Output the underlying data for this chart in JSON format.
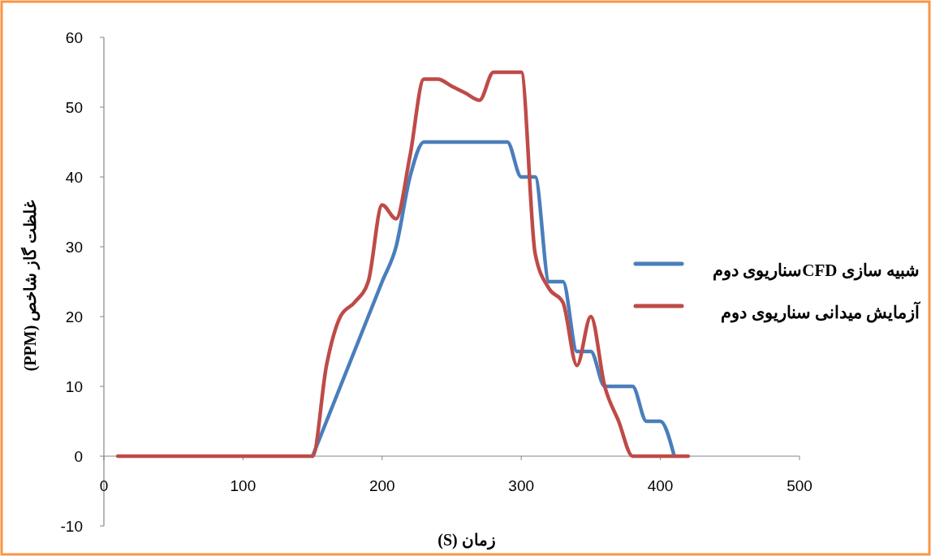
{
  "chart_data": {
    "type": "line",
    "xlabel": "زمان (S)",
    "ylabel": "غلظت گاز شاخص (PPM)",
    "xlim": [
      0,
      500
    ],
    "xticks": [
      0,
      100,
      200,
      300,
      400,
      500
    ],
    "ylim": [
      -10,
      60
    ],
    "yticks": [
      -10,
      0,
      10,
      20,
      30,
      40,
      50,
      60
    ],
    "grid": false,
    "legend": "right",
    "marker": "none",
    "line_style": "solid",
    "series": [
      {
        "name": "شبیه سازی  CFDسناریوی دوم",
        "color": "#4a7ebb",
        "x": [
          150,
          160,
          170,
          180,
          190,
          200,
          210,
          220,
          230,
          240,
          250,
          260,
          270,
          280,
          290,
          300,
          310,
          320,
          330,
          340,
          350,
          360,
          370,
          380,
          390,
          400,
          410
        ],
        "values": [
          0,
          5,
          10,
          15,
          20,
          25,
          30,
          40,
          45,
          45,
          45,
          45,
          45,
          45,
          45,
          40,
          40,
          25,
          25,
          15,
          15,
          10,
          10,
          10,
          5,
          5,
          0
        ]
      },
      {
        "name": "آزمایش میدانی سناریوی دوم",
        "color": "#be4b48",
        "x": [
          10,
          20,
          30,
          40,
          50,
          60,
          70,
          80,
          90,
          100,
          110,
          120,
          130,
          140,
          150,
          160,
          170,
          180,
          190,
          200,
          210,
          220,
          230,
          240,
          250,
          260,
          270,
          280,
          290,
          300,
          310,
          320,
          330,
          340,
          350,
          360,
          370,
          380,
          390,
          400,
          410,
          420
        ],
        "values": [
          0,
          0,
          0,
          0,
          0,
          0,
          0,
          0,
          0,
          0,
          0,
          0,
          0,
          0,
          0,
          13,
          20,
          22,
          25,
          36,
          34,
          43,
          54,
          54,
          53,
          52,
          51,
          55,
          55,
          55,
          29,
          24,
          22,
          13,
          20,
          10,
          5,
          0,
          0,
          0,
          0,
          0
        ]
      }
    ]
  }
}
